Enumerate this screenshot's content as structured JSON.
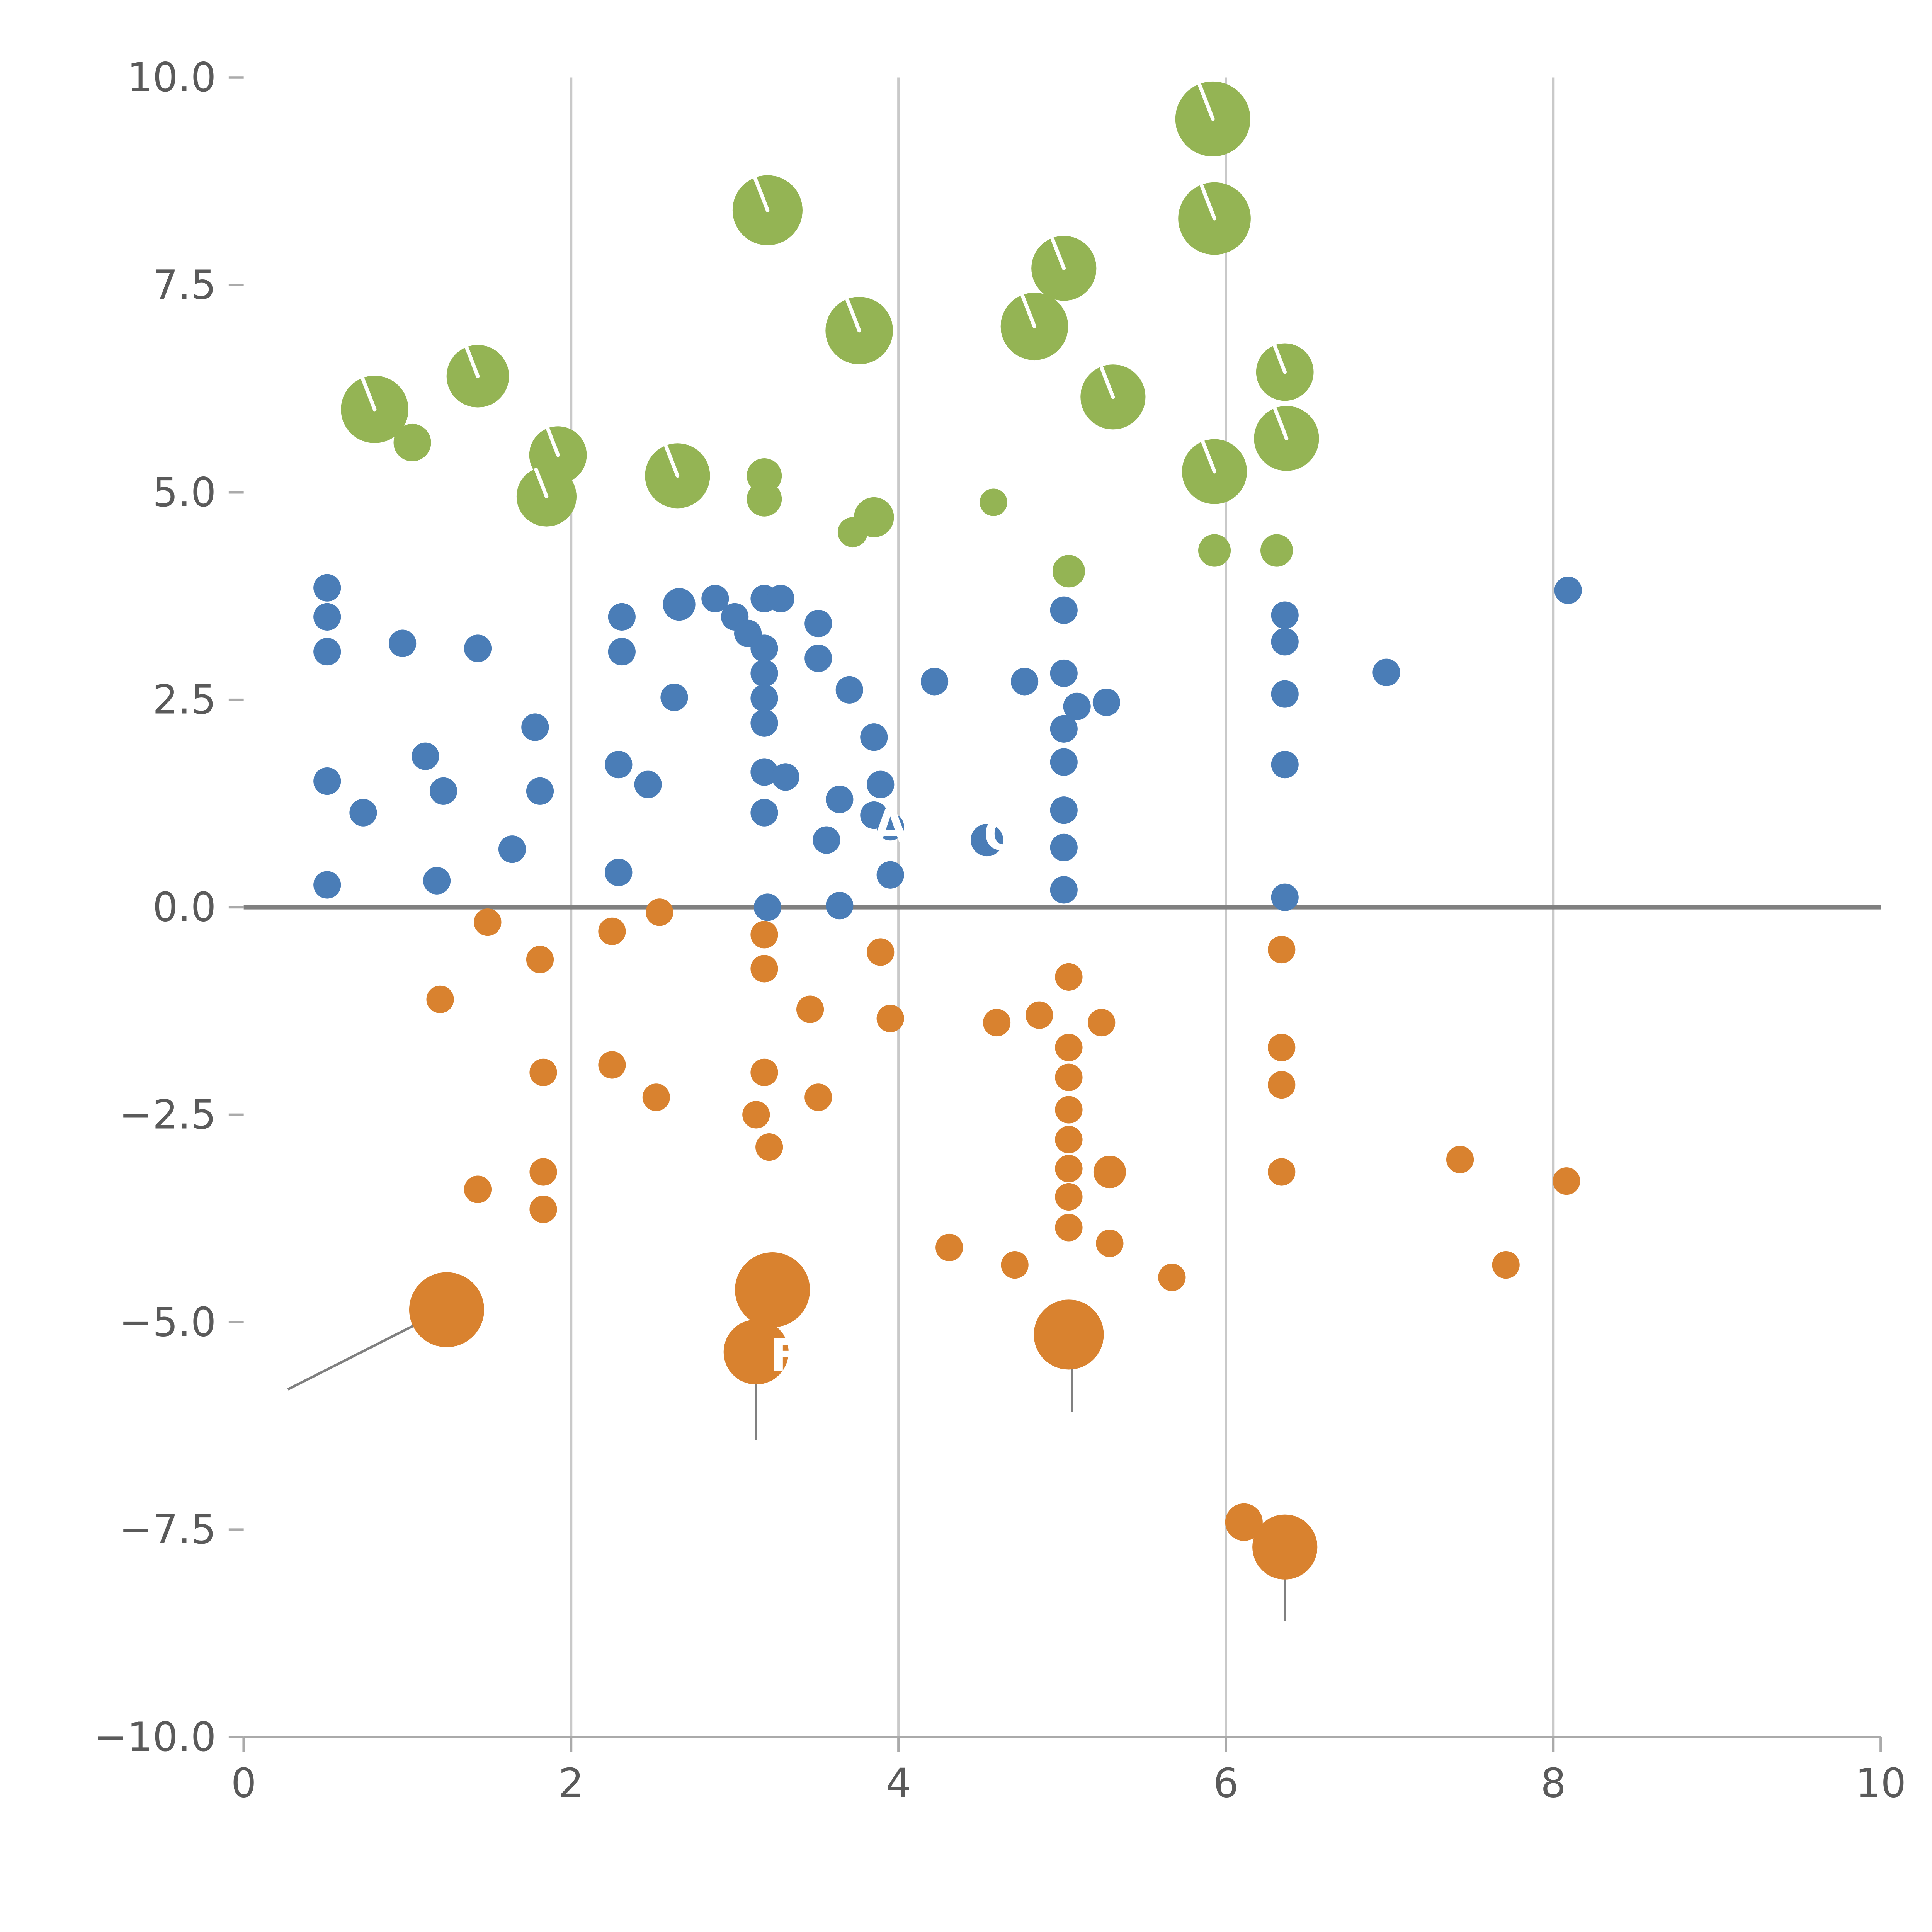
{
  "chart_data": {
    "type": "scatter",
    "title": "",
    "xlabel": "",
    "ylabel": "",
    "xlim": [
      0,
      10
    ],
    "ylim": [
      -10,
      10
    ],
    "x_ticks": [
      0,
      2,
      4,
      6,
      8,
      10
    ],
    "x_tick_labels": [
      "0",
      "2",
      "4",
      "6",
      "8",
      "10"
    ],
    "y_ticks": [
      10.0,
      7.5,
      5.0,
      2.5,
      0.0,
      -2.5,
      -5.0,
      -7.5,
      -10.0
    ],
    "y_tick_labels": [
      "10.0",
      "7.5",
      "5.0",
      "2.5",
      "0.0",
      "−2.5",
      "−5.0",
      "−7.5",
      "−10.0"
    ],
    "grid": "vertical-only",
    "grid_x": [
      2,
      4,
      6,
      8
    ],
    "grid_color": "#c9c9c9",
    "zero_line": true,
    "zero_line_color": "#808080",
    "spine_color": "#aaaaaa",
    "tick_label_color": "#5a5a5a",
    "background": "#ffffff",
    "legend": "none",
    "series": [
      {
        "name": "green-cluster",
        "color": "#94b454",
        "default_r": 13,
        "needles": true,
        "points": [
          [
            3.2,
            8.4,
            28
          ],
          [
            5.92,
            9.5,
            30
          ],
          [
            5.93,
            8.3,
            29
          ],
          [
            5.01,
            7.7,
            26
          ],
          [
            4.83,
            7.0,
            27
          ],
          [
            3.76,
            6.95,
            27
          ],
          [
            1.43,
            6.4,
            25
          ],
          [
            5.31,
            6.15,
            26
          ],
          [
            6.36,
            6.45,
            23
          ],
          [
            0.8,
            6.0,
            27
          ],
          [
            1.03,
            5.6,
            15
          ],
          [
            6.37,
            5.65,
            26
          ],
          [
            1.92,
            5.45,
            23
          ],
          [
            2.65,
            5.2,
            26
          ],
          [
            1.85,
            4.95,
            24
          ],
          [
            3.18,
            5.2,
            14
          ],
          [
            3.18,
            4.92,
            14
          ],
          [
            5.93,
            5.25,
            26
          ],
          [
            3.85,
            4.7,
            16
          ],
          [
            3.72,
            4.52,
            12
          ],
          [
            4.58,
            4.88,
            11
          ],
          [
            5.04,
            4.05,
            13
          ],
          [
            5.93,
            4.3,
            13
          ],
          [
            6.31,
            4.3,
            13
          ]
        ]
      },
      {
        "name": "blue-cluster",
        "color": "#4a7db7",
        "default_r": 11,
        "needles": false,
        "points": [
          [
            0.51,
            3.85
          ],
          [
            0.51,
            3.5
          ],
          [
            0.51,
            3.08
          ],
          [
            0.97,
            3.18
          ],
          [
            1.43,
            3.12
          ],
          [
            2.31,
            3.5
          ],
          [
            2.31,
            3.08
          ],
          [
            2.66,
            3.65,
            13
          ],
          [
            2.88,
            3.72
          ],
          [
            3.0,
            3.5
          ],
          [
            3.08,
            3.3
          ],
          [
            3.18,
            3.72
          ],
          [
            3.28,
            3.72
          ],
          [
            3.18,
            3.12
          ],
          [
            3.18,
            2.82
          ],
          [
            3.18,
            2.52
          ],
          [
            3.18,
            2.22
          ],
          [
            3.51,
            3.42
          ],
          [
            3.51,
            3.0
          ],
          [
            3.7,
            2.62
          ],
          [
            3.85,
            2.05
          ],
          [
            4.22,
            2.72
          ],
          [
            4.77,
            2.72
          ],
          [
            5.01,
            3.58
          ],
          [
            5.01,
            2.82
          ],
          [
            5.09,
            2.42
          ],
          [
            5.27,
            2.47
          ],
          [
            5.01,
            2.15
          ],
          [
            5.01,
            1.75
          ],
          [
            5.01,
            1.17
          ],
          [
            5.01,
            0.72
          ],
          [
            5.01,
            0.21
          ],
          [
            2.63,
            2.53
          ],
          [
            1.78,
            2.17
          ],
          [
            1.81,
            1.4
          ],
          [
            1.11,
            1.82
          ],
          [
            1.22,
            1.4
          ],
          [
            0.51,
            1.52
          ],
          [
            0.73,
            1.14
          ],
          [
            1.64,
            0.7
          ],
          [
            1.18,
            0.32
          ],
          [
            0.51,
            0.27
          ],
          [
            2.29,
            1.72
          ],
          [
            2.29,
            0.42
          ],
          [
            2.47,
            1.48
          ],
          [
            3.18,
            1.63
          ],
          [
            3.18,
            1.14
          ],
          [
            3.31,
            1.57
          ],
          [
            3.56,
            0.81
          ],
          [
            3.64,
            1.3
          ],
          [
            3.85,
            1.11
          ],
          [
            3.89,
            1.48
          ],
          [
            3.95,
            0.39
          ],
          [
            3.95,
            0.97
          ],
          [
            4.54,
            0.81,
            13
          ],
          [
            6.36,
            3.52
          ],
          [
            6.36,
            3.2
          ],
          [
            6.36,
            2.57
          ],
          [
            6.36,
            1.72
          ],
          [
            6.36,
            0.12
          ],
          [
            6.98,
            2.83
          ],
          [
            8.09,
            3.82
          ],
          [
            3.2,
            0.0
          ],
          [
            3.64,
            0.02
          ]
        ]
      },
      {
        "name": "orange-cluster",
        "color": "#d9822f",
        "default_r": 11,
        "needles": false,
        "points": [
          [
            1.49,
            -0.18
          ],
          [
            1.81,
            -0.63
          ],
          [
            1.2,
            -1.11
          ],
          [
            2.25,
            -0.29
          ],
          [
            2.54,
            -0.06
          ],
          [
            3.18,
            -0.33
          ],
          [
            3.18,
            -0.74
          ],
          [
            3.46,
            -1.23
          ],
          [
            3.89,
            -0.54
          ],
          [
            3.95,
            -1.34
          ],
          [
            4.6,
            -1.39
          ],
          [
            4.86,
            -1.3
          ],
          [
            5.04,
            -0.84
          ],
          [
            5.24,
            -1.39
          ],
          [
            5.04,
            -1.69
          ],
          [
            5.04,
            -2.05
          ],
          [
            5.04,
            -2.44
          ],
          [
            5.04,
            -2.8
          ],
          [
            5.04,
            -3.15
          ],
          [
            5.04,
            -3.49
          ],
          [
            5.04,
            -3.86
          ],
          [
            5.29,
            -3.19,
            13
          ],
          [
            5.29,
            -4.05
          ],
          [
            2.25,
            -1.9
          ],
          [
            1.83,
            -1.99
          ],
          [
            2.52,
            -2.29
          ],
          [
            3.18,
            -1.99
          ],
          [
            3.51,
            -2.29
          ],
          [
            3.13,
            -2.5
          ],
          [
            3.21,
            -2.89
          ],
          [
            1.43,
            -3.4
          ],
          [
            1.83,
            -3.19
          ],
          [
            1.83,
            -3.64
          ],
          [
            4.31,
            -4.1
          ],
          [
            4.71,
            -4.31
          ],
          [
            5.67,
            -4.46
          ],
          [
            6.34,
            -0.51
          ],
          [
            6.34,
            -1.69
          ],
          [
            6.34,
            -2.14
          ],
          [
            6.34,
            -3.19
          ],
          [
            7.43,
            -3.04
          ],
          [
            7.71,
            -4.31
          ],
          [
            8.08,
            -3.3
          ],
          [
            1.24,
            -4.85,
            30
          ],
          [
            3.23,
            -4.61,
            30
          ],
          [
            3.13,
            -5.36,
            26
          ],
          [
            5.04,
            -5.15,
            28
          ],
          [
            6.11,
            -7.41,
            15
          ],
          [
            6.36,
            -7.71,
            26
          ]
        ]
      }
    ],
    "annotations": [
      {
        "text": "A",
        "x": 3.95,
        "y": 0.97,
        "color": "#ffffff"
      },
      {
        "text": "C",
        "x": 4.62,
        "y": 0.87,
        "color": "#ffffff"
      },
      {
        "text": "F",
        "x": 3.31,
        "y": -5.41,
        "color": "#ffffff"
      }
    ],
    "leader_lines": [
      {
        "x1": 0.27,
        "y1": -5.81,
        "x2": 1.2,
        "y2": -4.88
      },
      {
        "x1": 3.13,
        "y1": -4.73,
        "x2": 3.13,
        "y2": -6.42
      },
      {
        "x1": 5.06,
        "y1": -5.21,
        "x2": 5.06,
        "y2": -6.08
      },
      {
        "x1": 6.36,
        "y1": -7.82,
        "x2": 6.36,
        "y2": -8.6
      }
    ]
  }
}
